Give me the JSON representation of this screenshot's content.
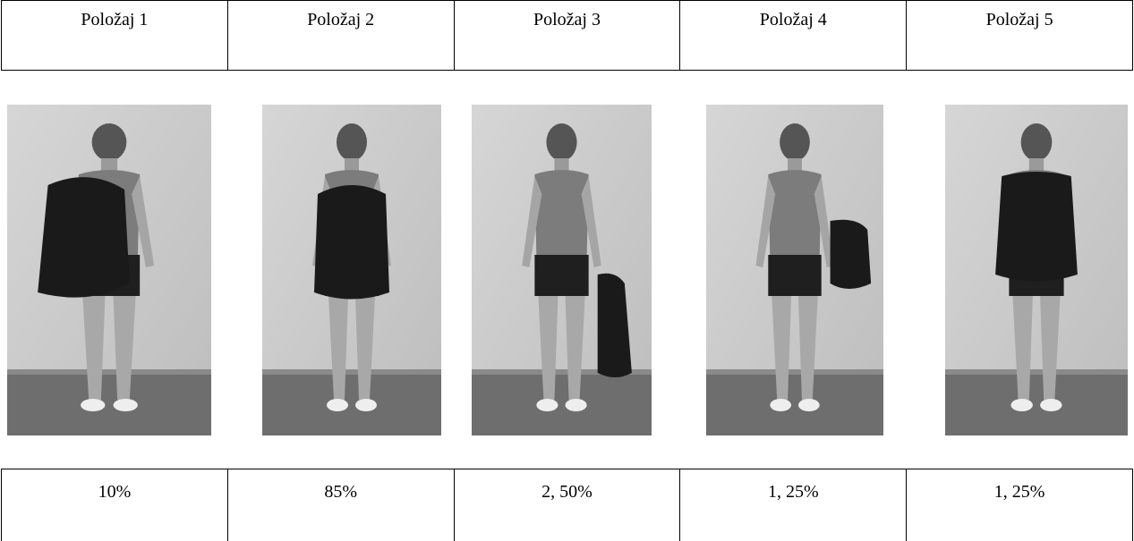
{
  "table": {
    "header": [
      "Položaj 1",
      "Položaj 2",
      "Položaj 3",
      "Položaj 4",
      "Položaj 5"
    ],
    "values": [
      "10%",
      "85%",
      "2, 50%",
      "1, 25%",
      "1, 25%"
    ]
  }
}
